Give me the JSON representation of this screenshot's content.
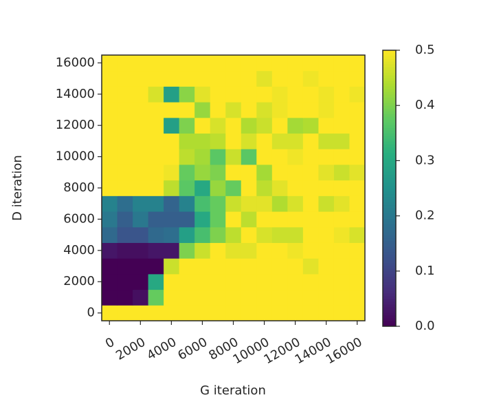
{
  "chart_data": {
    "type": "heatmap",
    "x_label": "G iteration",
    "y_label": "D iteration",
    "x": [
      0,
      1000,
      2000,
      3000,
      4000,
      5000,
      6000,
      7000,
      8000,
      9000,
      10000,
      11000,
      12000,
      13000,
      14000,
      15000,
      16000
    ],
    "y": [
      0,
      1000,
      2000,
      3000,
      4000,
      5000,
      6000,
      7000,
      8000,
      9000,
      10000,
      11000,
      12000,
      13000,
      14000,
      15000,
      16000
    ],
    "xlim": [
      -500,
      16500
    ],
    "ylim": [
      -500,
      16500
    ],
    "xticks": [
      0,
      2000,
      4000,
      6000,
      8000,
      10000,
      12000,
      14000,
      16000
    ],
    "yticks": [
      0,
      2000,
      4000,
      6000,
      8000,
      10000,
      12000,
      14000,
      16000
    ],
    "colormap": "viridis",
    "clim": [
      0,
      0.5
    ],
    "colorbar_ticks": [
      {
        "value": 0,
        "label": "0.0"
      },
      0.1,
      0.2,
      0.3,
      0.4,
      0.5
    ],
    "values": [
      [
        0.5,
        0.5,
        0.5,
        0.5,
        0.5,
        0.5,
        0.5,
        0.5,
        0.5,
        0.5,
        0.5,
        0.5,
        0.5,
        0.5,
        0.5,
        0.5,
        0.5
      ],
      [
        0.0,
        0.0,
        0.02,
        0.38,
        0.5,
        0.5,
        0.5,
        0.5,
        0.5,
        0.5,
        0.5,
        0.5,
        0.5,
        0.5,
        0.5,
        0.5,
        0.5
      ],
      [
        0.0,
        0.0,
        0.0,
        0.3,
        0.5,
        0.5,
        0.5,
        0.5,
        0.5,
        0.5,
        0.5,
        0.5,
        0.5,
        0.5,
        0.5,
        0.5,
        0.5
      ],
      [
        0.0,
        0.0,
        0.0,
        0.0,
        0.46,
        0.5,
        0.5,
        0.5,
        0.5,
        0.5,
        0.5,
        0.5,
        0.5,
        0.48,
        0.5,
        0.5,
        0.5
      ],
      [
        0.03,
        0.02,
        0.02,
        0.03,
        0.03,
        0.4,
        0.46,
        0.5,
        0.48,
        0.48,
        0.5,
        0.5,
        0.49,
        0.5,
        0.5,
        0.5,
        0.5
      ],
      [
        0.17,
        0.13,
        0.13,
        0.17,
        0.18,
        0.28,
        0.35,
        0.4,
        0.45,
        0.5,
        0.47,
        0.46,
        0.46,
        0.5,
        0.5,
        0.49,
        0.47
      ],
      [
        0.2,
        0.15,
        0.2,
        0.15,
        0.15,
        0.15,
        0.3,
        0.38,
        0.5,
        0.45,
        0.5,
        0.5,
        0.5,
        0.5,
        0.5,
        0.5,
        0.5
      ],
      [
        0.22,
        0.18,
        0.22,
        0.22,
        0.16,
        0.22,
        0.35,
        0.38,
        0.46,
        0.48,
        0.48,
        0.44,
        0.47,
        0.5,
        0.46,
        0.48,
        0.5
      ],
      [
        0.5,
        0.5,
        0.5,
        0.5,
        0.45,
        0.37,
        0.3,
        0.42,
        0.38,
        0.5,
        0.45,
        0.48,
        0.5,
        0.5,
        0.5,
        0.5,
        0.5
      ],
      [
        0.5,
        0.5,
        0.5,
        0.5,
        0.49,
        0.38,
        0.42,
        0.4,
        0.5,
        0.5,
        0.43,
        0.5,
        0.5,
        0.5,
        0.48,
        0.46,
        0.48
      ],
      [
        0.5,
        0.5,
        0.5,
        0.5,
        0.5,
        0.45,
        0.43,
        0.37,
        0.46,
        0.37,
        0.5,
        0.5,
        0.49,
        0.5,
        0.5,
        0.5,
        0.5
      ],
      [
        0.5,
        0.5,
        0.5,
        0.5,
        0.5,
        0.44,
        0.44,
        0.45,
        0.5,
        0.47,
        0.5,
        0.47,
        0.47,
        0.5,
        0.46,
        0.46,
        0.5
      ],
      [
        0.5,
        0.5,
        0.5,
        0.5,
        0.28,
        0.4,
        0.5,
        0.47,
        0.5,
        0.44,
        0.46,
        0.5,
        0.43,
        0.44,
        0.5,
        0.5,
        0.5
      ],
      [
        0.5,
        0.5,
        0.5,
        0.5,
        0.5,
        0.5,
        0.42,
        0.5,
        0.47,
        0.5,
        0.47,
        0.49,
        0.5,
        0.5,
        0.49,
        0.5,
        0.5
      ],
      [
        0.5,
        0.5,
        0.5,
        0.47,
        0.28,
        0.41,
        0.48,
        0.5,
        0.5,
        0.5,
        0.5,
        0.49,
        0.5,
        0.5,
        0.49,
        0.5,
        0.49
      ],
      [
        0.5,
        0.5,
        0.5,
        0.5,
        0.5,
        0.5,
        0.5,
        0.5,
        0.5,
        0.5,
        0.48,
        0.5,
        0.5,
        0.49,
        0.5,
        0.5,
        0.5
      ],
      [
        0.5,
        0.5,
        0.5,
        0.5,
        0.5,
        0.5,
        0.5,
        0.5,
        0.5,
        0.5,
        0.5,
        0.5,
        0.5,
        0.5,
        0.5,
        0.5,
        0.5
      ]
    ]
  }
}
